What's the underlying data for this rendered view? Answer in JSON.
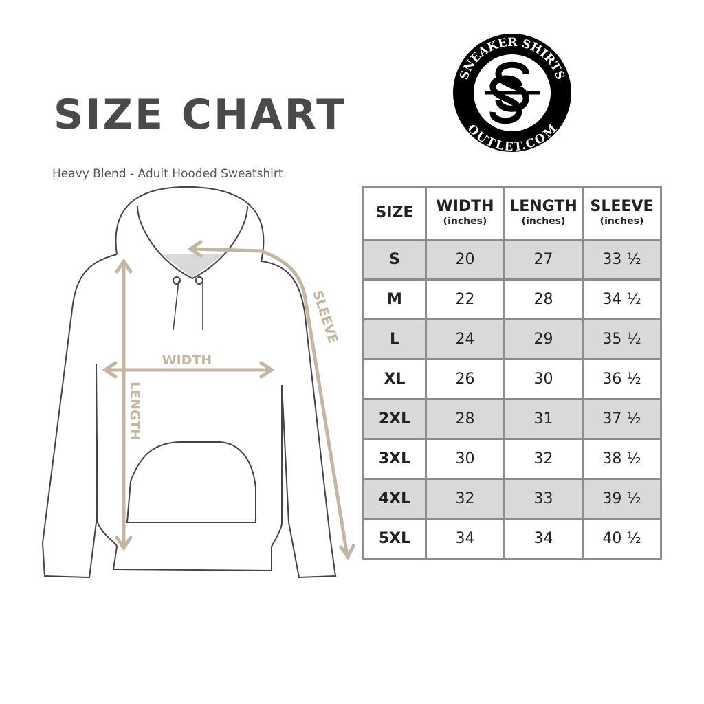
{
  "title": "SIZE CHART",
  "subtitle": "Heavy Blend - Adult Hooded Sweatshirt",
  "logo": {
    "top_text": "SNEAKER SHIRTS",
    "bottom_text": "OUTLET.COM",
    "monogram": "SS"
  },
  "diagram": {
    "width_label": "WIDTH",
    "length_label": "LENGTH",
    "sleeve_label": "SLEEVE",
    "accent_color": "#c4b7a2"
  },
  "table": {
    "headers": [
      {
        "label": "SIZE",
        "unit": ""
      },
      {
        "label": "WIDTH",
        "unit": "(inches)"
      },
      {
        "label": "LENGTH",
        "unit": "(inches)"
      },
      {
        "label": "SLEEVE",
        "unit": "(inches)"
      }
    ],
    "rows": [
      [
        "S",
        "20",
        "27",
        "33 ½"
      ],
      [
        "M",
        "22",
        "28",
        "34 ½"
      ],
      [
        "L",
        "24",
        "29",
        "35 ½"
      ],
      [
        "XL",
        "26",
        "30",
        "36 ½"
      ],
      [
        "2XL",
        "28",
        "31",
        "37 ½"
      ],
      [
        "3XL",
        "30",
        "32",
        "38 ½"
      ],
      [
        "4XL",
        "32",
        "33",
        "39 ½"
      ],
      [
        "5XL",
        "34",
        "34",
        "40 ½"
      ]
    ]
  }
}
